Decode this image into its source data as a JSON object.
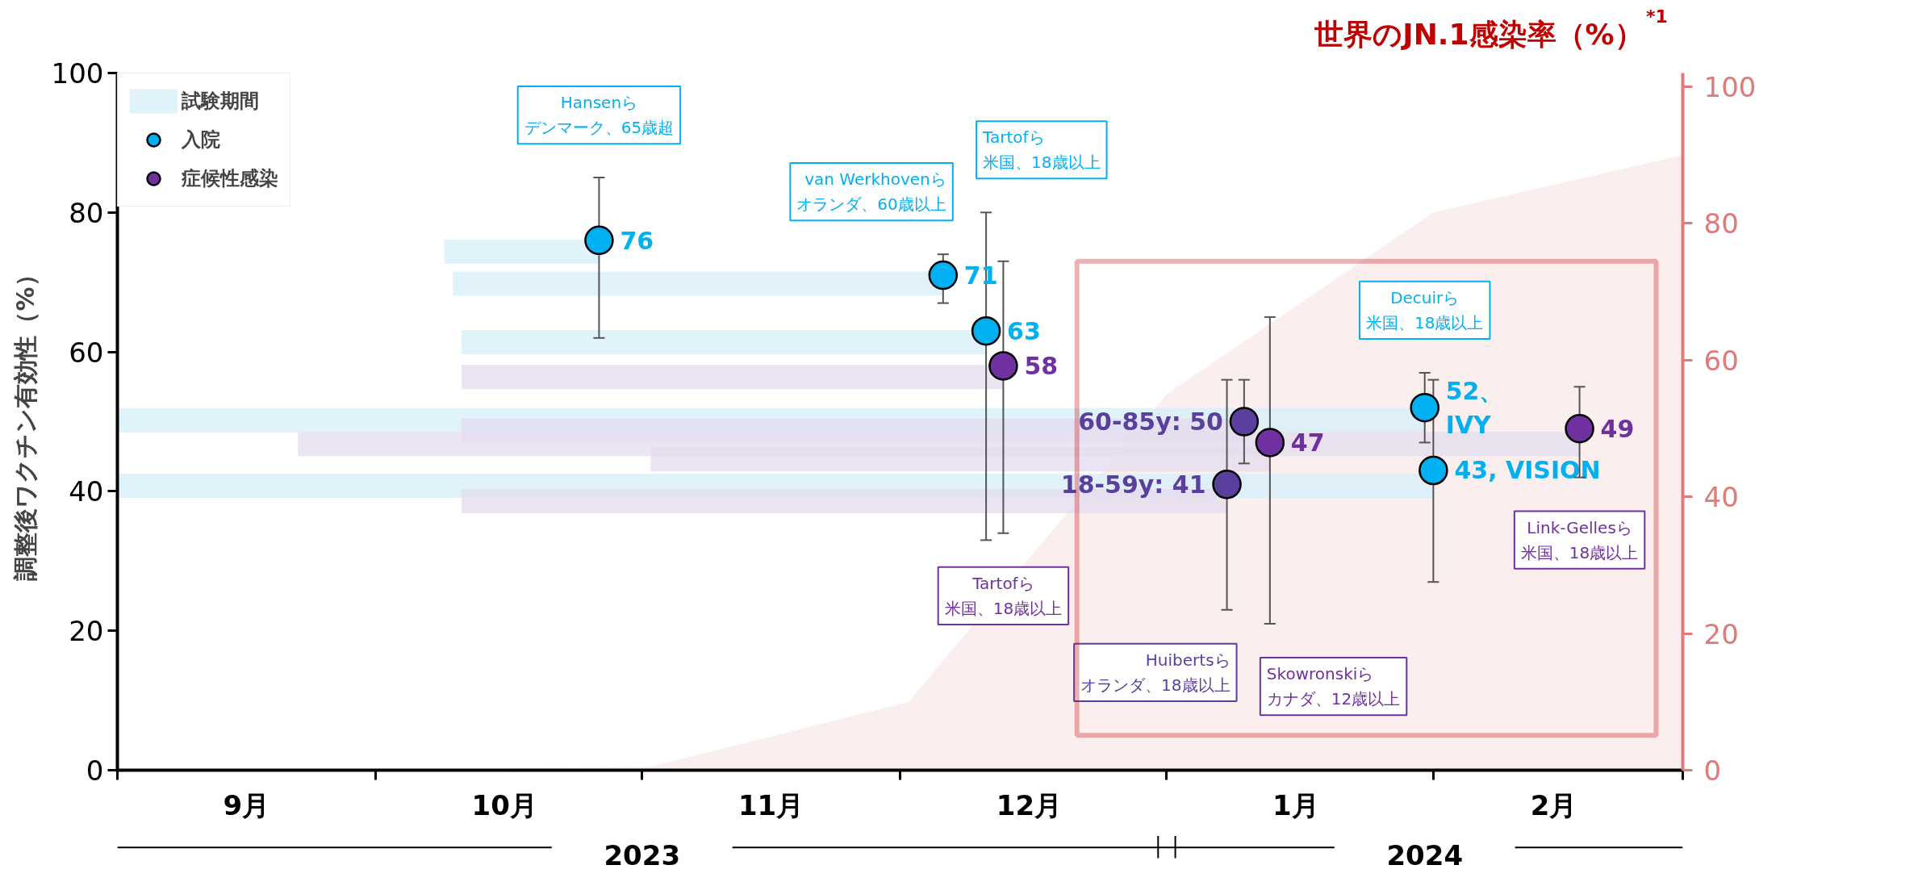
{
  "chart_data": {
    "type": "scatter",
    "ylabel": "調整後ワクチン有効性（%）",
    "y2label": "世界のJN.1感染率（%）$^{*1}$",
    "xlim": [
      "2023-09-01",
      "2024-03-01"
    ],
    "ylim": [
      0,
      100
    ],
    "yticks": [
      0,
      20,
      40,
      60,
      80,
      100
    ],
    "y2lim": [
      0,
      102
    ],
    "y2ticks": [
      0,
      20,
      40,
      60,
      80,
      100
    ],
    "xticks": [
      {
        "value": "2023-09-01",
        "label": null
      },
      {
        "value": "2023-09-16",
        "label": "9月"
      },
      {
        "value": "2023-10-01",
        "label": null
      },
      {
        "value": "2023-10-16",
        "label": "10月"
      },
      {
        "value": "2023-11-01",
        "label": null
      },
      {
        "value": "2023-11-16",
        "label": "11月"
      },
      {
        "value": "2023-12-01",
        "label": null
      },
      {
        "value": "2023-12-16",
        "label": "12月"
      },
      {
        "value": "2024-01-01",
        "label": null
      },
      {
        "value": "2024-01-16",
        "label": "1月"
      },
      {
        "value": "2024-02-01",
        "label": null
      },
      {
        "value": "2024-02-15",
        "label": "2月"
      },
      {
        "value": "2024-03-01",
        "label": null
      }
    ],
    "legend": "top left",
    "grid": false,
    "annotations": [
      {
        "text": "Hansenらデンマーク、65歳超",
        "x": "2023-10-27",
        "y": 85
      },
      {
        "text": "van Werkhovenらオランダ、60歳以上",
        "x": "2023-12-06",
        "y": 74
      },
      {
        "text": "Tartofら米国、18歳以上",
        "x": "2023-12-11",
        "y": 80
      },
      {
        "text": "Tartofら米国、18歳以上",
        "x": "2023-12-13",
        "y": 34
      },
      {
        "text": "Huibertsらオランダ、18歳以上",
        "x": "2024-01-08",
        "y": 23
      },
      {
        "text": "Skowronskiらカナダ、12歳以上",
        "x": "2024-01-13",
        "y": 21
      },
      {
        "text": "Decuirら米国、18歳以上",
        "x": "2024-01-31",
        "y": 57
      },
      {
        "text": "Link-Gellesら米国、18歳以上",
        "x": "2024-02-18",
        "y": 42
      },
      "2023",
      "2024"
    ],
    "series": [
      {
        "type": "area",
        "axis": "y2",
        "color": "#fbeeee",
        "x": [
          "2023-10-03",
          "2023-11-02",
          "2023-12-02",
          "2024-01-01",
          "2024-02-01",
          "2024-03-01"
        ],
        "values": [
          0,
          0.5,
          10,
          55,
          81.6,
          90
        ]
      },
      {
        "type": "line",
        "name": "試験期間",
        "color": "#d5eff9",
        "x": [
          "2023-10-09",
          "2023-10-27"
        ],
        "values": [
          74.4,
          74.4
        ]
      },
      {
        "type": "line",
        "color": "#d5eff9",
        "x": [
          "2023-10-10",
          "2023-12-06"
        ],
        "values": [
          69.8,
          69.8
        ]
      },
      {
        "type": "line",
        "color": "#d5eff9",
        "x": [
          "2023-10-11",
          "2023-12-11"
        ],
        "values": [
          61.4,
          61.4
        ]
      },
      {
        "type": "line",
        "color": "#d5eff9",
        "x": [
          "2023-09-01",
          "2024-01-31"
        ],
        "values": [
          50.2,
          50.2
        ]
      },
      {
        "type": "line",
        "color": "#d5eff9",
        "x": [
          "2023-09-01",
          "2024-02-01"
        ],
        "values": [
          40.8,
          40.8
        ]
      },
      {
        "type": "line",
        "color": "#e4dcef",
        "x": [
          "2023-10-11",
          "2023-12-13"
        ],
        "values": [
          56.4,
          56.4
        ]
      },
      {
        "type": "line",
        "color": "#e4dcef",
        "x": [
          "2023-09-22",
          "2024-02-18"
        ],
        "values": [
          46.8,
          46.8
        ]
      },
      {
        "type": "line",
        "color": "#e4dcef",
        "x": [
          "2023-10-11",
          "2024-01-10"
        ],
        "values": [
          48.7,
          48.7
        ]
      },
      {
        "type": "line",
        "color": "#e4dcef",
        "x": [
          "2023-11-02",
          "2024-01-13"
        ],
        "values": [
          44.6,
          44.6
        ]
      },
      {
        "type": "line",
        "color": "#e4dcef",
        "x": [
          "2023-10-11",
          "2024-01-08"
        ],
        "values": [
          38.6,
          38.6
        ]
      },
      {
        "name": "入院",
        "color": "#00b0f0",
        "marker": "circle",
        "x": [
          "2023-10-27",
          "2023-12-06",
          "2023-12-11",
          "2024-01-31",
          "2024-02-01"
        ],
        "values": [
          76,
          71,
          63,
          52,
          43
        ],
        "errors": [
          [
            62,
            85
          ],
          [
            67,
            74
          ],
          [
            33,
            80
          ],
          [
            47,
            57
          ],
          [
            27,
            56
          ]
        ],
        "value_labels": [
          "76",
          "71",
          "63",
          "52、\nIVY",
          "43, VISION"
        ]
      },
      {
        "name": "症候性感染",
        "color": "#7030a0",
        "marker": "circle",
        "x": [
          "2023-12-13",
          "2024-01-13",
          "2024-02-18"
        ],
        "values": [
          58,
          47,
          49
        ],
        "errors": [
          [
            34,
            73
          ],
          [
            21,
            65
          ],
          [
            42,
            55
          ]
        ],
        "value_labels": [
          "58",
          "47",
          "49"
        ]
      },
      {
        "color": "#5b3f9e",
        "marker": "circle",
        "x": [
          "2024-01-10",
          "2024-01-08"
        ],
        "values": [
          50,
          41
        ],
        "errors": [
          [
            44,
            56
          ],
          [
            23,
            56
          ]
        ],
        "value_labels": [
          "60-85y: 50",
          "18-59y: 41"
        ]
      }
    ]
  }
}
